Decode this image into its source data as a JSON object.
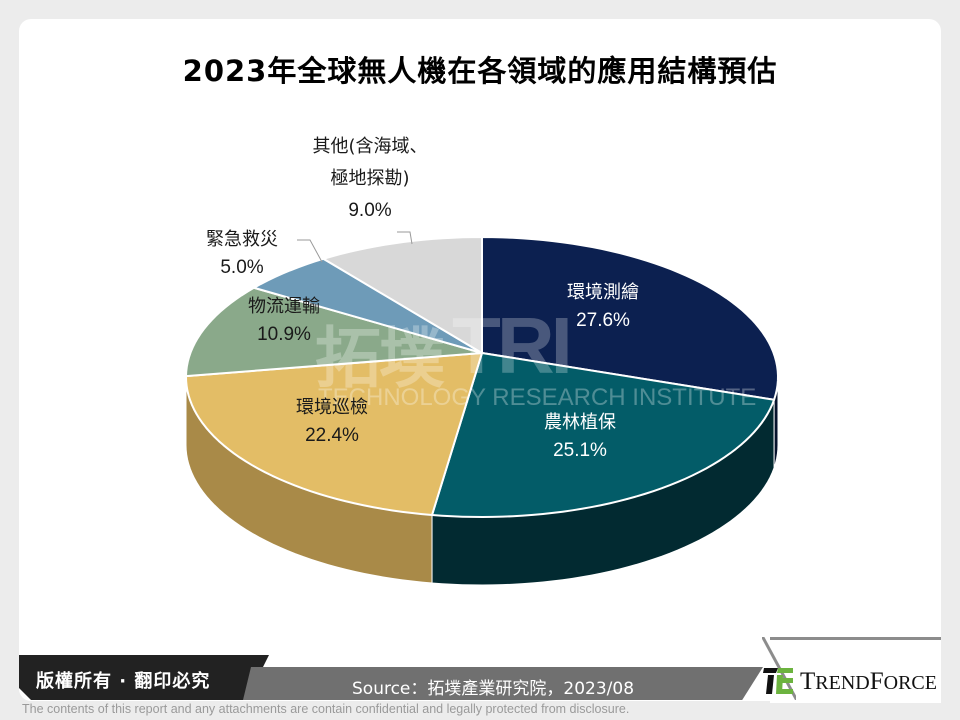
{
  "title": "2023年全球無人機在各領域的應用結構預估",
  "chart_data": {
    "type": "pie",
    "style": "3d-exploded-none",
    "title": "2023年全球無人機在各領域的應用結構預估",
    "categories": [
      "環境測繪",
      "農林植保",
      "環境巡檢",
      "物流運輸",
      "緊急救災",
      "其他(含海域、極地探勘)"
    ],
    "values": [
      27.6,
      25.1,
      22.4,
      10.9,
      5.0,
      9.0
    ],
    "unit": "%",
    "colors": [
      "#0c2050",
      "#035c68",
      "#e3bd66",
      "#8aa98a",
      "#6e9bb8",
      "#d8d8d8"
    ],
    "side_colors": [
      "#06122c",
      "#022a31",
      "#a98a48",
      "#5e7a5e",
      "#4c6f85",
      "#a7a7a7"
    ],
    "start_angle": "12 o'clock, clockwise",
    "legend": "data labels on slices"
  },
  "labels": [
    {
      "name": "環境測繪",
      "pct": "27.6%"
    },
    {
      "name": "農林植保",
      "pct": "25.1%"
    },
    {
      "name": "環境巡檢",
      "pct": "22.4%"
    },
    {
      "name": "物流運輸",
      "pct": "10.9%"
    },
    {
      "name": "緊急救災",
      "pct": "5.0%"
    },
    {
      "name_line1": "其他(含海域、",
      "name_line2": "極地探勘)",
      "pct": "9.0%"
    }
  ],
  "watermark": {
    "cn": "拓墣",
    "abbr": "TRI",
    "en": "TECHNOLOGY RESEARCH INSTITUTE"
  },
  "footer": {
    "copyright": "版權所有 · 翻印必究",
    "source": "Source：拓墣產業研究院，2023/08",
    "brand": "TrendForce",
    "brand_caps_first": "T",
    "brand_rest1": "REND",
    "brand_caps_second": "F",
    "brand_rest2": "ORCE",
    "disclaimer": "The contents of this report and any attachments are contain confidential and legally protected from disclosure."
  }
}
